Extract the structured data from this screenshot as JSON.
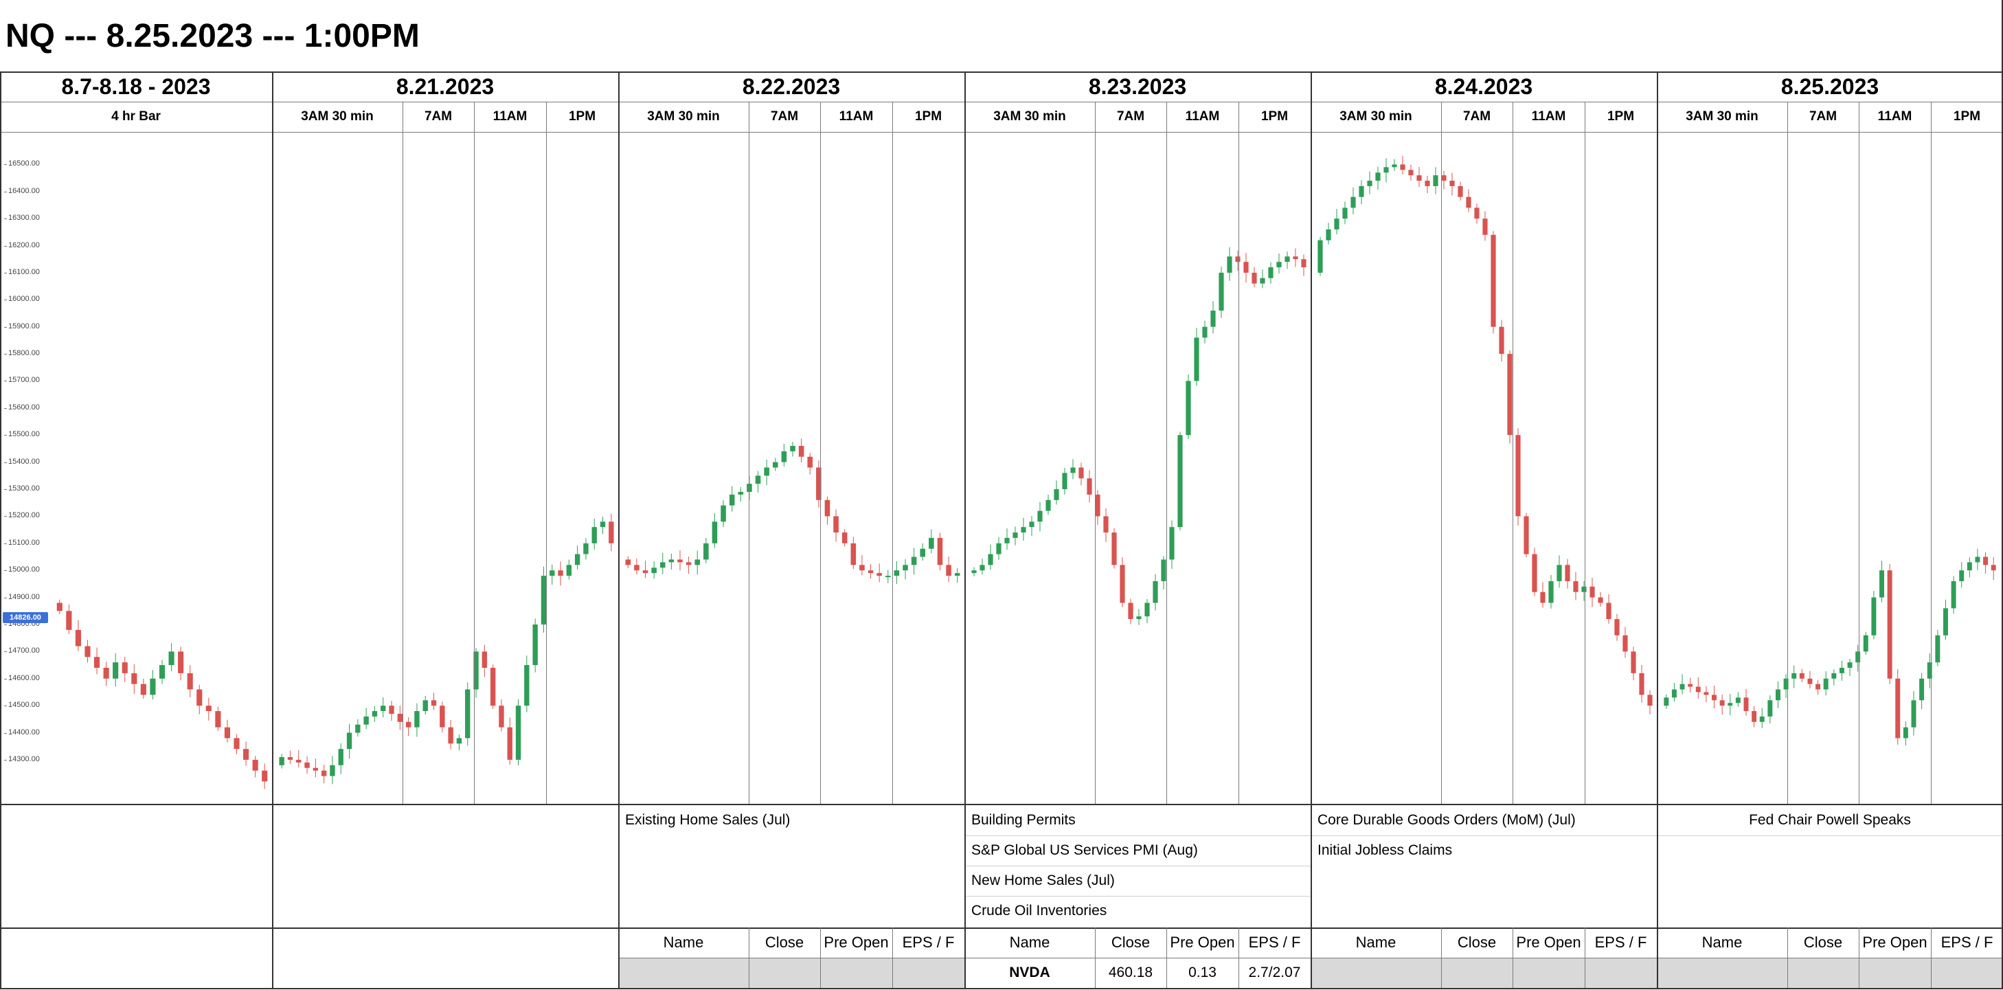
{
  "title": "NQ --- 8.25.2023 --- 1:00PM",
  "days": [
    {
      "label": "8.7-8.18 - 2023",
      "subs": [
        "4 hr Bar"
      ]
    },
    {
      "label": "8.21.2023",
      "subs": [
        "3AM 30 min",
        "7AM",
        "11AM",
        "1PM"
      ]
    },
    {
      "label": "8.22.2023",
      "subs": [
        "3AM 30 min",
        "7AM",
        "11AM",
        "1PM"
      ]
    },
    {
      "label": "8.23.2023",
      "subs": [
        "3AM 30 min",
        "7AM",
        "11AM",
        "1PM"
      ]
    },
    {
      "label": "8.24.2023",
      "subs": [
        "3AM 30 min",
        "7AM",
        "11AM",
        "1PM"
      ]
    },
    {
      "label": "8.25.2023",
      "subs": [
        "3AM 30 min",
        "7AM",
        "11AM",
        "1PM"
      ]
    }
  ],
  "price_axis": {
    "ticks": [
      "16500.00",
      "16400.00",
      "16300.00",
      "16200.00",
      "16100.00",
      "16000.00",
      "15900.00",
      "15800.00",
      "15700.00",
      "15600.00",
      "15500.00",
      "15400.00",
      "15300.00",
      "15200.00",
      "15100.00",
      "15000.00",
      "14900.00",
      "14800.00",
      "14700.00",
      "14600.00",
      "14500.00",
      "14400.00",
      "14300.00"
    ],
    "last_price": "14826.00"
  },
  "chart_data": {
    "type": "candlestick",
    "y_unit": "NQ price",
    "ylim": [
      14150,
      16600
    ],
    "colors": {
      "up": "#2e9e57",
      "down": "#d9534f"
    },
    "panels": [
      {
        "day": "8.7-8.18 - 2023",
        "path": [
          14880,
          14850,
          14780,
          14720,
          14680,
          14640,
          14600,
          14660,
          14620,
          14580,
          14540,
          14600,
          14650,
          14700,
          14620,
          14560,
          14500,
          14480,
          14420,
          14380,
          14340,
          14300,
          14260,
          14220
        ]
      },
      {
        "day": "8.21.2023",
        "path": [
          14280,
          14310,
          14300,
          14290,
          14270,
          14260,
          14240,
          14280,
          14340,
          14400,
          14430,
          14460,
          14480,
          14500,
          14470,
          14440,
          14420,
          14480,
          14520,
          14500,
          14420,
          14360,
          14380,
          14560,
          14700,
          14640,
          14500,
          14420,
          14300,
          14500,
          14650,
          14800,
          14980,
          15000,
          14980,
          15020,
          15060,
          15100,
          15160,
          15180,
          15100
        ]
      },
      {
        "day": "8.22.2023",
        "path": [
          15040,
          15020,
          15000,
          14990,
          15010,
          15030,
          15040,
          15030,
          15020,
          15040,
          15100,
          15180,
          15240,
          15280,
          15290,
          15320,
          15350,
          15380,
          15400,
          15440,
          15460,
          15420,
          15380,
          15260,
          15200,
          15140,
          15100,
          15020,
          15000,
          14990,
          14980,
          14980,
          15000,
          15020,
          15050,
          15080,
          15120,
          15020,
          14980,
          14990
        ]
      },
      {
        "day": "8.23.2023",
        "path": [
          14990,
          15000,
          15020,
          15060,
          15100,
          15120,
          15140,
          15160,
          15180,
          15220,
          15260,
          15300,
          15360,
          15380,
          15340,
          15280,
          15200,
          15140,
          15020,
          14880,
          14820,
          14830,
          14880,
          14960,
          15040,
          15160,
          15500,
          15700,
          15860,
          15900,
          15960,
          16100,
          16160,
          16140,
          16100,
          16060,
          16080,
          16120,
          16140,
          16160,
          16150,
          16120
        ]
      },
      {
        "day": "8.24.2023",
        "path": [
          16100,
          16220,
          16260,
          16300,
          16340,
          16380,
          16420,
          16440,
          16470,
          16490,
          16500,
          16480,
          16460,
          16440,
          16420,
          16460,
          16440,
          16420,
          16380,
          16340,
          16300,
          16240,
          15900,
          15800,
          15500,
          15200,
          15060,
          14920,
          14880,
          14960,
          15020,
          14960,
          14920,
          14940,
          14900,
          14880,
          14820,
          14760,
          14700,
          14620,
          14540,
          14500
        ]
      },
      {
        "day": "8.25.2023",
        "path": [
          14500,
          14530,
          14560,
          14580,
          14570,
          14550,
          14540,
          14520,
          14500,
          14510,
          14530,
          14480,
          14440,
          14460,
          14520,
          14560,
          14600,
          14620,
          14600,
          14580,
          14560,
          14600,
          14620,
          14640,
          14660,
          14700,
          14760,
          14900,
          15000,
          14600,
          14380,
          14420,
          14520,
          14600,
          14660,
          14760,
          14860,
          14960,
          15000,
          15030,
          15050,
          15020,
          15000
        ]
      }
    ]
  },
  "events": {
    "col_2": [
      "Existing Home Sales (Jul)"
    ],
    "col_3": [
      "Building Permits",
      "S&P Global US Services PMI (Aug)",
      "New Home Sales (Jul)",
      "Crude Oil Inventories"
    ],
    "col_4": [
      "Core Durable Goods Orders (MoM) (Jul)",
      "Initial Jobless Claims"
    ],
    "col_5": [
      "Fed Chair Powell Speaks"
    ]
  },
  "earnings": {
    "headers": [
      "Name",
      "Close",
      "Pre Open",
      "EPS / F"
    ],
    "rows": {
      "col_3": [
        "NVDA",
        "460.18",
        "0.13",
        "2.7/2.07"
      ]
    }
  }
}
